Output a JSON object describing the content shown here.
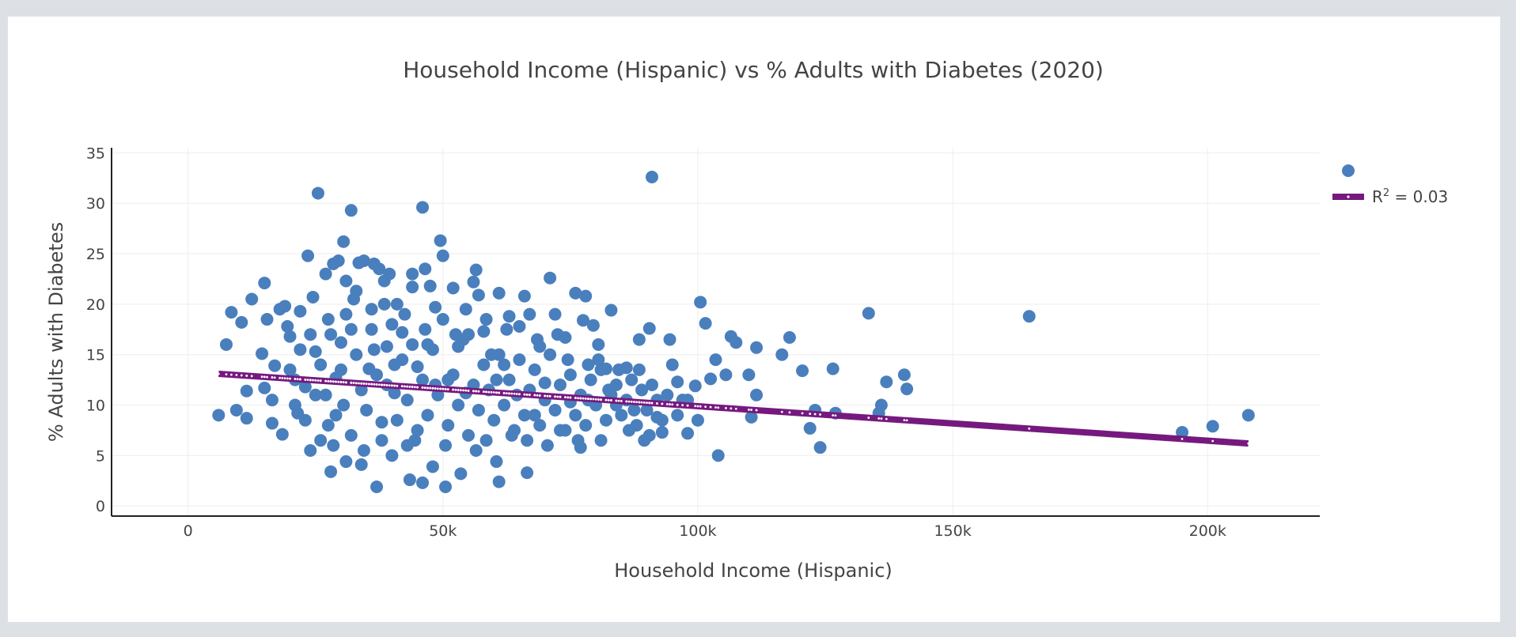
{
  "chart_data": {
    "type": "scatter",
    "title": "Household Income (Hispanic) vs % Adults with Diabetes (2020)",
    "xlabel": "Household Income (Hispanic)",
    "ylabel": "% Adults with Diabetes",
    "xlim": [
      -15000,
      222000
    ],
    "ylim": [
      -1,
      35.5
    ],
    "x_ticks": [
      0,
      50000,
      100000,
      150000,
      200000
    ],
    "x_tick_labels": [
      "0",
      "50k",
      "100k",
      "150k",
      "200k"
    ],
    "y_ticks": [
      0,
      5,
      10,
      15,
      20,
      25,
      30,
      35
    ],
    "y_tick_labels": [
      "0",
      "5",
      "10",
      "15",
      "20",
      "25",
      "30",
      "35"
    ],
    "grid": true,
    "legend_position": "top-right",
    "colors": {
      "points": "#4a7fbd",
      "trendline": "#76197f",
      "trend_marker": "#ffffff"
    },
    "series": [
      {
        "kind": "scatter",
        "points": [
          [
            6000,
            9.0
          ],
          [
            7500,
            16.0
          ],
          [
            8500,
            19.2
          ],
          [
            9500,
            9.5
          ],
          [
            10500,
            18.2
          ],
          [
            11500,
            11.4
          ],
          [
            11500,
            8.7
          ],
          [
            12500,
            20.5
          ],
          [
            14500,
            15.1
          ],
          [
            15000,
            22.1
          ],
          [
            15000,
            11.7
          ],
          [
            15500,
            18.5
          ],
          [
            16500,
            10.5
          ],
          [
            16500,
            8.2
          ],
          [
            17000,
            13.9
          ],
          [
            18000,
            19.5
          ],
          [
            18500,
            7.1
          ],
          [
            19000,
            19.8
          ],
          [
            19500,
            17.8
          ],
          [
            20000,
            16.8
          ],
          [
            21000,
            12.5
          ],
          [
            21500,
            9.2
          ],
          [
            22000,
            19.3
          ],
          [
            23000,
            11.8
          ],
          [
            23500,
            24.8
          ],
          [
            24000,
            5.5
          ],
          [
            24500,
            20.7
          ],
          [
            25000,
            15.3
          ],
          [
            25500,
            31.0
          ],
          [
            26000,
            6.5
          ],
          [
            27000,
            23.0
          ],
          [
            27500,
            8.0
          ],
          [
            28000,
            3.4
          ],
          [
            28500,
            24.0
          ],
          [
            29000,
            12.7
          ],
          [
            29500,
            24.3
          ],
          [
            30000,
            16.2
          ],
          [
            30500,
            26.2
          ],
          [
            31000,
            22.3
          ],
          [
            31000,
            4.4
          ],
          [
            32000,
            29.3
          ],
          [
            32000,
            17.5
          ],
          [
            33000,
            21.3
          ],
          [
            33500,
            24.1
          ],
          [
            34000,
            4.1
          ],
          [
            34500,
            24.3
          ],
          [
            35500,
            13.6
          ],
          [
            36000,
            19.5
          ],
          [
            36500,
            24.0
          ],
          [
            37000,
            1.9
          ],
          [
            37500,
            23.5
          ],
          [
            38000,
            8.3
          ],
          [
            38500,
            22.3
          ],
          [
            39000,
            15.8
          ],
          [
            39500,
            23.0
          ],
          [
            40000,
            5.0
          ],
          [
            40500,
            11.2
          ],
          [
            41000,
            20.0
          ],
          [
            42000,
            17.2
          ],
          [
            43000,
            6.0
          ],
          [
            43500,
            2.6
          ],
          [
            44000,
            21.7
          ],
          [
            44000,
            23.0
          ],
          [
            45000,
            13.8
          ],
          [
            46000,
            2.3
          ],
          [
            46000,
            29.6
          ],
          [
            46500,
            23.5
          ],
          [
            47000,
            16.0
          ],
          [
            47500,
            21.8
          ],
          [
            48000,
            3.9
          ],
          [
            48500,
            19.7
          ],
          [
            49500,
            26.3
          ],
          [
            50000,
            24.8
          ],
          [
            50500,
            1.9
          ],
          [
            51000,
            12.5
          ],
          [
            52000,
            21.6
          ],
          [
            53000,
            15.8
          ],
          [
            53500,
            3.2
          ],
          [
            54500,
            11.2
          ],
          [
            55000,
            17.0
          ],
          [
            56000,
            22.2
          ],
          [
            56500,
            23.4
          ],
          [
            57000,
            20.9
          ],
          [
            58000,
            17.3
          ],
          [
            58500,
            6.5
          ],
          [
            59500,
            15.0
          ],
          [
            60500,
            4.4
          ],
          [
            61000,
            21.1
          ],
          [
            61000,
            2.4
          ],
          [
            62000,
            14.0
          ],
          [
            63000,
            18.8
          ],
          [
            63500,
            7.0
          ],
          [
            65000,
            17.8
          ],
          [
            66000,
            20.8
          ],
          [
            66500,
            3.3
          ],
          [
            67000,
            19.0
          ],
          [
            68000,
            9.0
          ],
          [
            69000,
            15.8
          ],
          [
            70000,
            12.2
          ],
          [
            71000,
            22.6
          ],
          [
            72000,
            19.0
          ],
          [
            73000,
            7.5
          ],
          [
            74000,
            16.7
          ],
          [
            75000,
            10.3
          ],
          [
            76000,
            21.1
          ],
          [
            77000,
            5.8
          ],
          [
            77500,
            18.4
          ],
          [
            78000,
            20.8
          ],
          [
            78500,
            14.0
          ],
          [
            79500,
            17.9
          ],
          [
            80500,
            16.0
          ],
          [
            81000,
            6.5
          ],
          [
            82000,
            13.6
          ],
          [
            83000,
            19.4
          ],
          [
            84000,
            10.0
          ],
          [
            86000,
            13.7
          ],
          [
            87500,
            9.5
          ],
          [
            88500,
            16.5
          ],
          [
            89500,
            6.5
          ],
          [
            90500,
            17.6
          ],
          [
            91000,
            32.6
          ],
          [
            92000,
            8.8
          ],
          [
            93000,
            7.3
          ],
          [
            94500,
            16.5
          ],
          [
            95000,
            14.0
          ],
          [
            96000,
            12.3
          ],
          [
            97000,
            10.5
          ],
          [
            98000,
            7.2
          ],
          [
            99500,
            11.9
          ],
          [
            100500,
            20.2
          ],
          [
            101500,
            18.1
          ],
          [
            102500,
            12.6
          ],
          [
            103500,
            14.5
          ],
          [
            104000,
            5.0
          ],
          [
            105500,
            13.0
          ],
          [
            106500,
            16.8
          ],
          [
            107500,
            16.2
          ],
          [
            110000,
            13.0
          ],
          [
            110500,
            8.8
          ],
          [
            111500,
            15.7
          ],
          [
            111500,
            11.0
          ],
          [
            116500,
            15.0
          ],
          [
            118000,
            16.7
          ],
          [
            120500,
            13.4
          ],
          [
            122000,
            7.7
          ],
          [
            123000,
            9.5
          ],
          [
            124000,
            5.8
          ],
          [
            126500,
            13.6
          ],
          [
            127000,
            9.2
          ],
          [
            133500,
            19.1
          ],
          [
            135500,
            9.2
          ],
          [
            136000,
            10.0
          ],
          [
            137000,
            12.3
          ],
          [
            140500,
            13.0
          ],
          [
            141000,
            11.6
          ],
          [
            165000,
            18.8
          ],
          [
            195000,
            7.3
          ],
          [
            201000,
            7.9
          ],
          [
            208000,
            9.0
          ],
          [
            26000,
            14.0
          ],
          [
            27000,
            11.0
          ],
          [
            28000,
            17.0
          ],
          [
            29000,
            9.0
          ],
          [
            30000,
            13.5
          ],
          [
            31000,
            19.0
          ],
          [
            32000,
            7.0
          ],
          [
            33000,
            15.0
          ],
          [
            34000,
            11.5
          ],
          [
            35000,
            9.5
          ],
          [
            36000,
            17.5
          ],
          [
            37000,
            13.0
          ],
          [
            38000,
            6.5
          ],
          [
            39000,
            12.0
          ],
          [
            40000,
            18.0
          ],
          [
            41000,
            8.5
          ],
          [
            42000,
            14.5
          ],
          [
            43000,
            10.5
          ],
          [
            44000,
            16.0
          ],
          [
            45000,
            7.5
          ],
          [
            46000,
            12.5
          ],
          [
            47000,
            9.0
          ],
          [
            48000,
            15.5
          ],
          [
            49000,
            11.0
          ],
          [
            50000,
            18.5
          ],
          [
            51000,
            8.0
          ],
          [
            52000,
            13.0
          ],
          [
            53000,
            10.0
          ],
          [
            54000,
            16.5
          ],
          [
            55000,
            7.0
          ],
          [
            56000,
            12.0
          ],
          [
            57000,
            9.5
          ],
          [
            58000,
            14.0
          ],
          [
            59000,
            11.5
          ],
          [
            60000,
            8.5
          ],
          [
            61000,
            15.0
          ],
          [
            62000,
            10.0
          ],
          [
            63000,
            12.5
          ],
          [
            64000,
            7.5
          ],
          [
            65000,
            14.5
          ],
          [
            66000,
            9.0
          ],
          [
            67000,
            11.5
          ],
          [
            68000,
            13.5
          ],
          [
            69000,
            8.0
          ],
          [
            70000,
            10.5
          ],
          [
            71000,
            15.0
          ],
          [
            72000,
            9.5
          ],
          [
            73000,
            12.0
          ],
          [
            74000,
            7.5
          ],
          [
            75000,
            13.0
          ],
          [
            76000,
            9.0
          ],
          [
            77000,
            11.0
          ],
          [
            78000,
            8.0
          ],
          [
            79000,
            12.5
          ],
          [
            80000,
            10.0
          ],
          [
            81000,
            13.5
          ],
          [
            82000,
            8.5
          ],
          [
            83000,
            11.0
          ],
          [
            84000,
            12.0
          ],
          [
            85000,
            9.0
          ],
          [
            86000,
            10.5
          ],
          [
            87000,
            12.5
          ],
          [
            88000,
            8.0
          ],
          [
            89000,
            11.5
          ],
          [
            90000,
            9.5
          ],
          [
            91000,
            12.0
          ],
          [
            92000,
            10.5
          ],
          [
            93000,
            8.5
          ],
          [
            94000,
            11.0
          ],
          [
            96000,
            9.0
          ],
          [
            98000,
            10.5
          ],
          [
            100000,
            8.5
          ],
          [
            20000,
            13.5
          ],
          [
            21000,
            10.0
          ],
          [
            22000,
            15.5
          ],
          [
            23000,
            8.5
          ],
          [
            24000,
            17.0
          ],
          [
            25000,
            11.0
          ],
          [
            27500,
            18.5
          ],
          [
            28500,
            6.0
          ],
          [
            30500,
            10.0
          ],
          [
            32500,
            20.5
          ],
          [
            34500,
            5.5
          ],
          [
            36500,
            15.5
          ],
          [
            38500,
            20.0
          ],
          [
            40500,
            14.0
          ],
          [
            42500,
            19.0
          ],
          [
            44500,
            6.5
          ],
          [
            46500,
            17.5
          ],
          [
            48500,
            12.0
          ],
          [
            50500,
            6.0
          ],
          [
            52500,
            17.0
          ],
          [
            54500,
            19.5
          ],
          [
            56500,
            5.5
          ],
          [
            58500,
            18.5
          ],
          [
            60500,
            12.5
          ],
          [
            62500,
            17.5
          ],
          [
            64500,
            11.0
          ],
          [
            66500,
            6.5
          ],
          [
            68500,
            16.5
          ],
          [
            70500,
            6.0
          ],
          [
            72500,
            17.0
          ],
          [
            74500,
            14.5
          ],
          [
            76500,
            6.5
          ],
          [
            78500,
            10.5
          ],
          [
            80500,
            14.5
          ],
          [
            82500,
            11.5
          ],
          [
            84500,
            13.5
          ],
          [
            86500,
            7.5
          ],
          [
            88500,
            13.5
          ],
          [
            90500,
            7.0
          ]
        ]
      },
      {
        "kind": "trendline",
        "label_prefix": "R",
        "label_sup": "2",
        "label_suffix": " = 0.03",
        "x_range": [
          6000,
          208000
        ],
        "y_range": [
          13.1,
          6.2
        ]
      }
    ]
  }
}
